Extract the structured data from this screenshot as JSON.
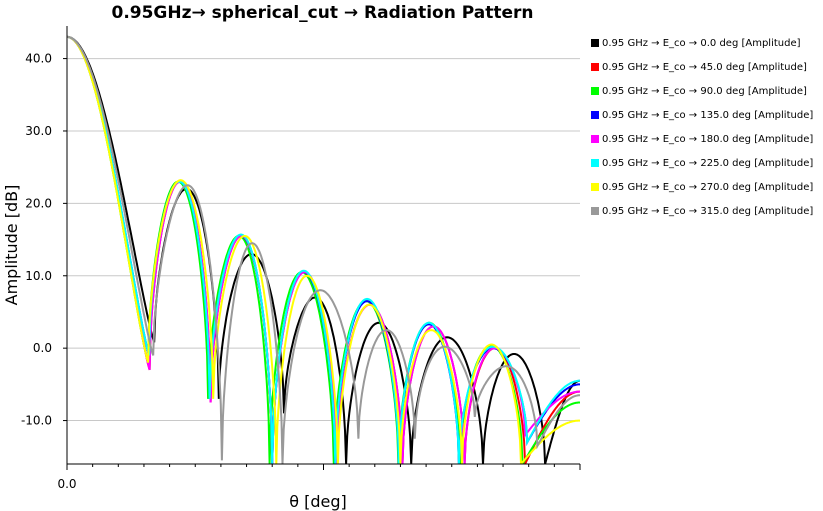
{
  "chart_data": {
    "type": "line",
    "title": "0.95GHz→ spherical_cut → Radiation Pattern",
    "xlabel": "θ [deg]",
    "ylabel": "Amplitude [dB]",
    "x_tick_labels": [
      "0.0"
    ],
    "y_tick_labels": [
      "40.0",
      "30.0",
      "20.0",
      "10.0",
      "0.0",
      "-10.0"
    ],
    "y_tick_values": [
      40,
      30,
      20,
      10,
      0,
      -10
    ],
    "ylim": [
      -16,
      44.5
    ],
    "xlim": [
      0,
      100
    ],
    "grid": "horizontal",
    "legend_position": "right",
    "series": [
      {
        "name": "0.95 GHz → E_co → 0.0 deg [Amplitude]",
        "color": "#000000",
        "peak": 43.0,
        "nulls": [
          17.0,
          29.6,
          42.3,
          54.4,
          67.1,
          81.1,
          93.2
        ],
        "lobes": [
          22.0,
          13.0,
          7.0,
          3.5,
          1.5,
          -0.8,
          -6.5
        ],
        "null_depth": [
          0.8,
          -7,
          -9,
          -16,
          -16,
          -16,
          -16
        ],
        "end": -4.5
      },
      {
        "name": "0.95 GHz → E_co → 45.0 deg [Amplitude]",
        "color": "#ff0000",
        "peak": 43.0,
        "nulls": [
          16.1,
          28.0,
          40.0,
          52.6,
          65.4,
          77.5,
          89.3
        ],
        "lobes": [
          23.0,
          15.5,
          10.5,
          6.0,
          3.0,
          0.0,
          -2.2
        ],
        "null_depth": [
          -3,
          -7.5,
          -16,
          -16,
          -16,
          -16,
          -16
        ],
        "end": -6.0
      },
      {
        "name": "0.95 GHz → E_co → 90.0 deg [Amplitude]",
        "color": "#00ff00",
        "peak": 43.0,
        "nulls": [
          15.8,
          27.5,
          39.5,
          52.0,
          64.6,
          76.6,
          88.8
        ],
        "lobes": [
          23.0,
          15.5,
          10.5,
          6.5,
          3.5,
          0.3,
          -5.0
        ],
        "null_depth": [
          -2,
          -7,
          -16,
          -16,
          -16,
          -16,
          -16
        ],
        "end": -7.5
      },
      {
        "name": "0.95 GHz → E_co → 135.0 deg [Amplitude]",
        "color": "#0000ff",
        "peak": 43.0,
        "nulls": [
          16.0,
          27.8,
          40.0,
          52.3,
          64.7,
          76.4,
          89.7
        ],
        "lobes": [
          23.0,
          15.5,
          10.5,
          6.5,
          3.3,
          0.0,
          -4.5
        ],
        "null_depth": [
          -1,
          -7,
          -16,
          -16,
          -16,
          -16,
          -13
        ],
        "end": -5.0
      },
      {
        "name": "0.95 GHz → E_co → 180.0 deg [Amplitude]",
        "color": "#ff00ff",
        "peak": 43.0,
        "nulls": [
          16.1,
          28.0,
          40.0,
          52.6,
          65.4,
          77.5,
          89.3
        ],
        "lobes": [
          23.0,
          15.5,
          10.5,
          6.0,
          3.0,
          0.0,
          -2.2
        ],
        "null_depth": [
          -3,
          -7.5,
          -16,
          -16,
          -16,
          -16,
          -12
        ],
        "end": -6.0
      },
      {
        "name": "0.95 GHz → E_co → 225.0 deg [Amplitude]",
        "color": "#00ffff",
        "peak": 43.0,
        "nulls": [
          16.0,
          27.8,
          40.0,
          52.3,
          64.7,
          76.4,
          89.7
        ],
        "lobes": [
          23.0,
          15.7,
          10.7,
          6.8,
          3.5,
          0.2,
          -4.7
        ],
        "null_depth": [
          -1,
          -7,
          -16,
          -16,
          -16,
          -16,
          -13
        ],
        "end": -4.5
      },
      {
        "name": "0.95 GHz → E_co → 270.0 deg [Amplitude]",
        "color": "#ffff00",
        "peak": 43.0,
        "nulls": [
          15.8,
          28.5,
          40.8,
          52.8,
          65.0,
          77.0,
          88.5
        ],
        "lobes": [
          23.2,
          15.5,
          10.0,
          6.0,
          2.5,
          0.5,
          -4.0
        ],
        "null_depth": [
          -2,
          -7,
          -16,
          -16,
          -16,
          -16,
          -16
        ],
        "end": -10.0
      },
      {
        "name": "0.95 GHz → E_co → 315.0 deg [Amplitude]",
        "color": "#999999",
        "peak": 43.0,
        "nulls": [
          16.8,
          30.2,
          42.0,
          56.8,
          67.8,
          79.5,
          91.7
        ],
        "lobes": [
          22.5,
          14.5,
          8.0,
          2.5,
          0.2,
          -2.5,
          -5.5
        ],
        "null_depth": [
          -1,
          -15.5,
          -16,
          -12.5,
          -12.5,
          -9.5,
          -13.5
        ],
        "end": -6.5
      }
    ]
  }
}
